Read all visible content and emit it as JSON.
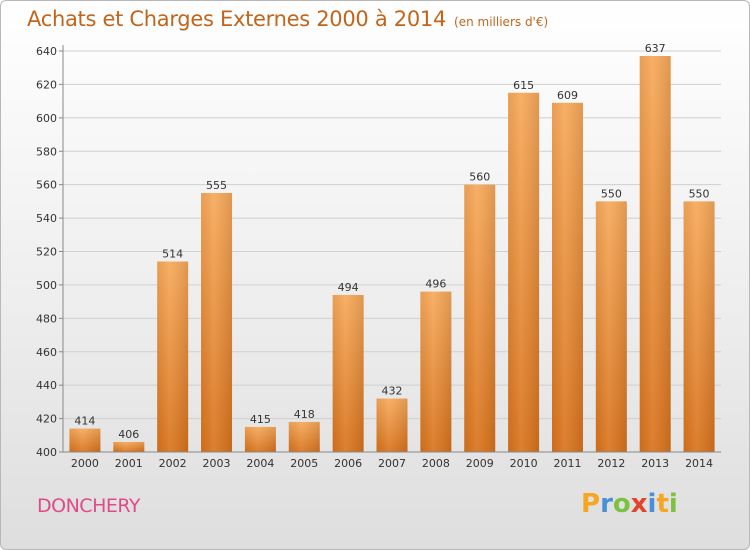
{
  "header": {
    "title": "Achats et Charges Externes 2000 à 2014",
    "unit": "(en milliers d'€)"
  },
  "footer": {
    "city": "DONCHERY",
    "logo_letters": [
      "P",
      "r",
      "o",
      "x",
      "i",
      "t",
      "i"
    ],
    "logo_colors": [
      "#f5a623",
      "#4a90d9",
      "#7cc242",
      "#e2452a",
      "#4a90d9",
      "#f5a623",
      "#7cc242"
    ]
  },
  "colors": {
    "bar_top": "#f7a95a",
    "bar_bottom": "#d9731c",
    "grid": "#cfcfcf",
    "title": "#c2651b",
    "city": "#e14a8a"
  },
  "chart_data": {
    "type": "bar",
    "title": "Achats et Charges Externes 2000 à 2014",
    "subtitle": "(en milliers d'€)",
    "categories": [
      "2000",
      "2001",
      "2002",
      "2003",
      "2004",
      "2005",
      "2006",
      "2007",
      "2008",
      "2009",
      "2010",
      "2011",
      "2012",
      "2013",
      "2014"
    ],
    "values": [
      414,
      406,
      514,
      555,
      415,
      418,
      494,
      432,
      496,
      560,
      615,
      609,
      550,
      637,
      550
    ],
    "ylim": [
      400,
      640
    ],
    "yticks": [
      400,
      420,
      440,
      460,
      480,
      500,
      520,
      540,
      560,
      580,
      600,
      620,
      640
    ],
    "grid": true,
    "xlabel": "",
    "ylabel": ""
  }
}
